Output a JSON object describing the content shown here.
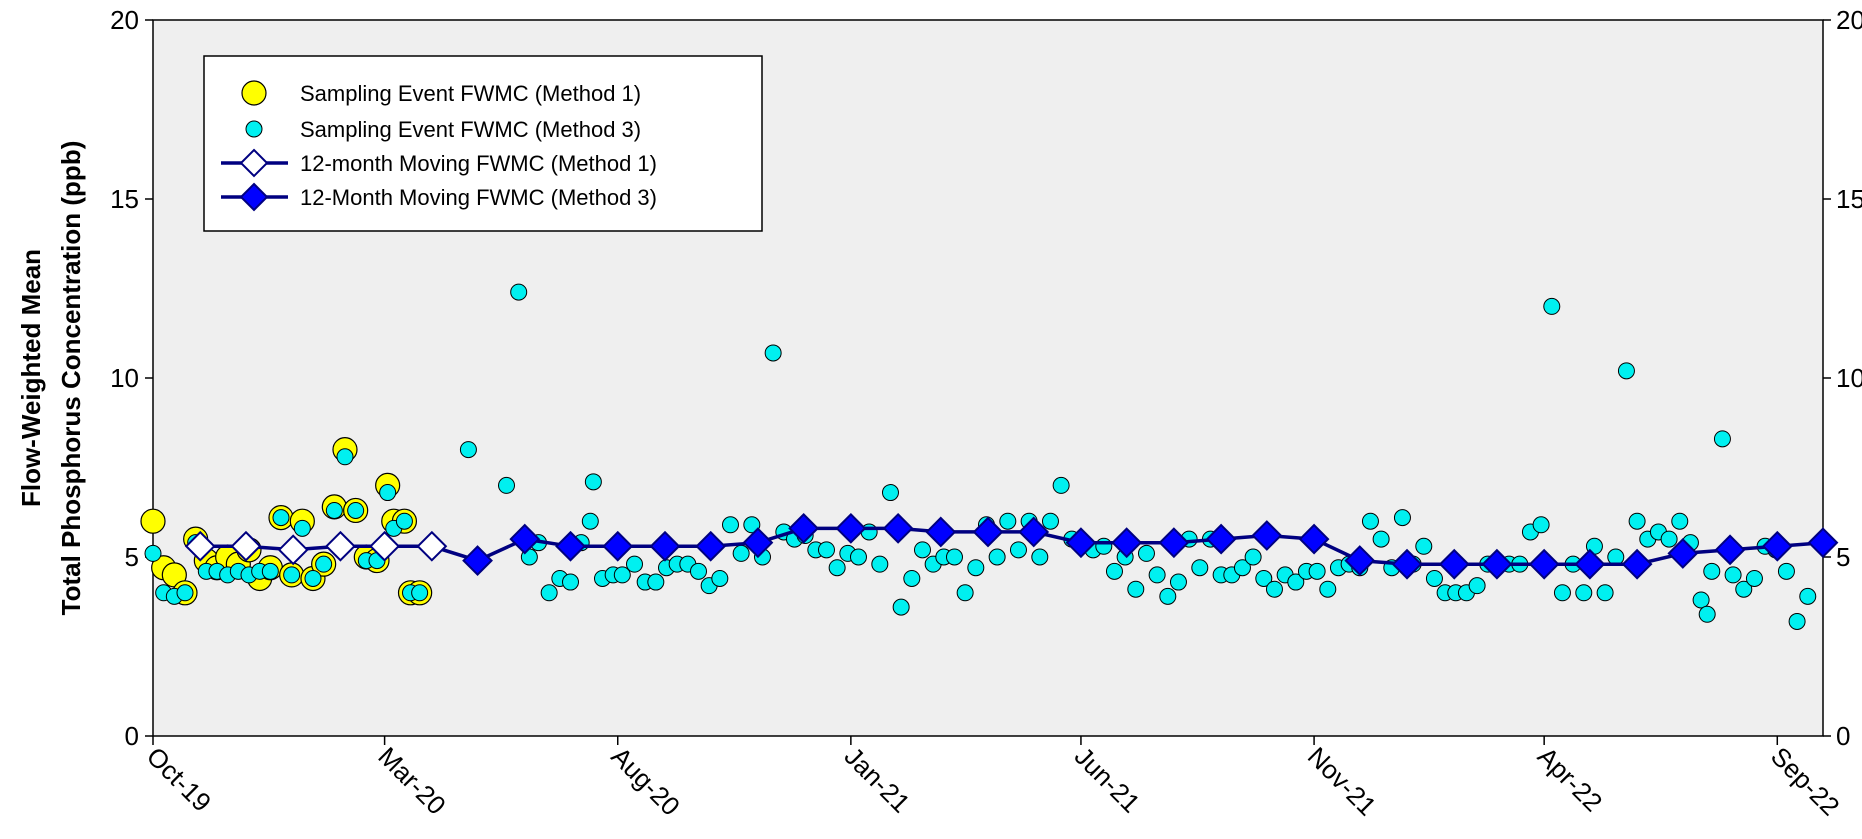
{
  "chart_data": {
    "type": "scatter",
    "ylabel": [
      "Flow-Weighted Mean",
      "Total Phosphorus Concentration (ppb)"
    ],
    "ylim": [
      0,
      20
    ],
    "yticks": [
      0,
      5,
      10,
      15,
      20
    ],
    "xlim": [
      "2019-10-01",
      "2022-10-01"
    ],
    "xticks": [
      {
        "date": "2019-10-01",
        "label": "Oct-19"
      },
      {
        "date": "2020-03-01",
        "label": "Mar-20"
      },
      {
        "date": "2020-08-01",
        "label": "Aug-20"
      },
      {
        "date": "2021-01-01",
        "label": "Jan-21"
      },
      {
        "date": "2021-06-01",
        "label": "Jun-21"
      },
      {
        "date": "2021-11-01",
        "label": "Nov-21"
      },
      {
        "date": "2022-04-01",
        "label": "Apr-22"
      },
      {
        "date": "2022-09-01",
        "label": "Sep-22"
      }
    ],
    "legend_position": "top-left",
    "grid": false,
    "colors": {
      "plot_bg": "#efefef",
      "method1_event_fill": "#ffff00",
      "method3_event_fill": "#00f0f0",
      "moving_line": "#000080",
      "method3_moving_fill": "#0000ff",
      "method1_moving_fill": "#ffffff"
    },
    "series": [
      {
        "name": "Sampling Event FWMC (Method 1)",
        "points": [
          [
            "2019-10-01",
            6.0
          ],
          [
            "2019-10-08",
            4.7
          ],
          [
            "2019-10-15",
            4.5
          ],
          [
            "2019-10-22",
            4.0
          ],
          [
            "2019-10-29",
            5.5
          ],
          [
            "2019-11-05",
            4.9
          ],
          [
            "2019-11-12",
            4.7
          ],
          [
            "2019-11-19",
            5.0
          ],
          [
            "2019-11-26",
            4.8
          ],
          [
            "2019-12-03",
            5.2
          ],
          [
            "2019-12-10",
            4.4
          ],
          [
            "2019-12-17",
            4.7
          ],
          [
            "2019-12-24",
            6.1
          ],
          [
            "2019-12-31",
            4.5
          ],
          [
            "2020-01-07",
            6.0
          ],
          [
            "2020-01-14",
            4.4
          ],
          [
            "2020-01-21",
            4.8
          ],
          [
            "2020-01-28",
            6.4
          ],
          [
            "2020-02-04",
            8.0
          ],
          [
            "2020-02-11",
            6.3
          ],
          [
            "2020-02-18",
            5.0
          ],
          [
            "2020-02-25",
            4.9
          ],
          [
            "2020-03-03",
            7.0
          ],
          [
            "2020-03-07",
            6.0
          ],
          [
            "2020-03-14",
            6.0
          ],
          [
            "2020-03-18",
            4.0
          ],
          [
            "2020-03-24",
            4.0
          ]
        ]
      },
      {
        "name": "Sampling Event FWMC (Method 3)",
        "points": [
          [
            "2019-10-01",
            5.1
          ],
          [
            "2019-10-08",
            4.0
          ],
          [
            "2019-10-15",
            3.9
          ],
          [
            "2019-10-22",
            4.0
          ],
          [
            "2019-10-29",
            5.4
          ],
          [
            "2019-11-05",
            4.6
          ],
          [
            "2019-11-12",
            4.6
          ],
          [
            "2019-11-19",
            4.5
          ],
          [
            "2019-11-26",
            4.6
          ],
          [
            "2019-12-03",
            4.5
          ],
          [
            "2019-12-10",
            4.6
          ],
          [
            "2019-12-17",
            4.6
          ],
          [
            "2019-12-24",
            6.1
          ],
          [
            "2019-12-31",
            4.5
          ],
          [
            "2020-01-07",
            5.8
          ],
          [
            "2020-01-14",
            4.4
          ],
          [
            "2020-01-21",
            4.8
          ],
          [
            "2020-01-28",
            6.3
          ],
          [
            "2020-02-04",
            7.8
          ],
          [
            "2020-02-11",
            6.3
          ],
          [
            "2020-02-18",
            4.9
          ],
          [
            "2020-02-25",
            4.9
          ],
          [
            "2020-03-03",
            6.8
          ],
          [
            "2020-03-07",
            5.8
          ],
          [
            "2020-03-14",
            6.0
          ],
          [
            "2020-03-18",
            4.0
          ],
          [
            "2020-03-24",
            4.0
          ],
          [
            "2020-04-25",
            8.0
          ],
          [
            "2020-05-20",
            7.0
          ],
          [
            "2020-05-28",
            12.4
          ],
          [
            "2020-06-04",
            5.0
          ],
          [
            "2020-06-10",
            5.4
          ],
          [
            "2020-06-17",
            4.0
          ],
          [
            "2020-06-24",
            4.4
          ],
          [
            "2020-07-01",
            4.3
          ],
          [
            "2020-07-08",
            5.4
          ],
          [
            "2020-07-14",
            6.0
          ],
          [
            "2020-07-16",
            7.1
          ],
          [
            "2020-07-22",
            4.4
          ],
          [
            "2020-07-29",
            4.5
          ],
          [
            "2020-08-04",
            4.5
          ],
          [
            "2020-08-12",
            4.8
          ],
          [
            "2020-08-19",
            4.3
          ],
          [
            "2020-08-26",
            4.3
          ],
          [
            "2020-09-02",
            4.7
          ],
          [
            "2020-09-09",
            4.8
          ],
          [
            "2020-09-16",
            4.8
          ],
          [
            "2020-09-23",
            4.6
          ],
          [
            "2020-09-30",
            4.2
          ],
          [
            "2020-10-07",
            4.4
          ],
          [
            "2020-10-14",
            5.9
          ],
          [
            "2020-10-21",
            5.1
          ],
          [
            "2020-10-28",
            5.9
          ],
          [
            "2020-11-04",
            5.0
          ],
          [
            "2020-11-11",
            10.7
          ],
          [
            "2020-11-18",
            5.7
          ],
          [
            "2020-11-25",
            5.5
          ],
          [
            "2020-12-02",
            5.6
          ],
          [
            "2020-12-09",
            5.2
          ],
          [
            "2020-12-16",
            5.2
          ],
          [
            "2020-12-23",
            4.7
          ],
          [
            "2020-12-30",
            5.1
          ],
          [
            "2021-01-06",
            5.0
          ],
          [
            "2021-01-13",
            5.7
          ],
          [
            "2021-01-20",
            4.8
          ],
          [
            "2021-01-27",
            6.8
          ],
          [
            "2021-02-03",
            3.6
          ],
          [
            "2021-02-10",
            4.4
          ],
          [
            "2021-02-17",
            5.2
          ],
          [
            "2021-02-24",
            4.8
          ],
          [
            "2021-03-03",
            5.0
          ],
          [
            "2021-03-10",
            5.0
          ],
          [
            "2021-03-17",
            4.0
          ],
          [
            "2021-03-24",
            4.7
          ],
          [
            "2021-03-31",
            5.9
          ],
          [
            "2021-04-07",
            5.0
          ],
          [
            "2021-04-14",
            6.0
          ],
          [
            "2021-04-21",
            5.2
          ],
          [
            "2021-04-28",
            6.0
          ],
          [
            "2021-05-05",
            5.0
          ],
          [
            "2021-05-12",
            6.0
          ],
          [
            "2021-05-19",
            7.0
          ],
          [
            "2021-05-26",
            5.5
          ],
          [
            "2021-06-02",
            5.4
          ],
          [
            "2021-06-09",
            5.2
          ],
          [
            "2021-06-16",
            5.3
          ],
          [
            "2021-06-23",
            4.6
          ],
          [
            "2021-06-30",
            5.0
          ],
          [
            "2021-07-07",
            4.1
          ],
          [
            "2021-07-14",
            5.1
          ],
          [
            "2021-07-21",
            4.5
          ],
          [
            "2021-07-28",
            3.9
          ],
          [
            "2021-08-04",
            4.3
          ],
          [
            "2021-08-11",
            5.5
          ],
          [
            "2021-08-18",
            4.7
          ],
          [
            "2021-08-25",
            5.5
          ],
          [
            "2021-09-01",
            4.5
          ],
          [
            "2021-09-08",
            4.5
          ],
          [
            "2021-09-15",
            4.7
          ],
          [
            "2021-09-22",
            5.0
          ],
          [
            "2021-09-29",
            4.4
          ],
          [
            "2021-10-06",
            4.1
          ],
          [
            "2021-10-13",
            4.5
          ],
          [
            "2021-10-20",
            4.3
          ],
          [
            "2021-10-27",
            4.6
          ],
          [
            "2021-11-03",
            4.6
          ],
          [
            "2021-11-10",
            4.1
          ],
          [
            "2021-11-17",
            4.7
          ],
          [
            "2021-11-24",
            4.8
          ],
          [
            "2021-12-01",
            4.7
          ],
          [
            "2021-12-08",
            6.0
          ],
          [
            "2021-12-15",
            5.5
          ],
          [
            "2021-12-22",
            4.7
          ],
          [
            "2021-12-29",
            6.1
          ],
          [
            "2022-01-05",
            4.8
          ],
          [
            "2022-01-12",
            5.3
          ],
          [
            "2022-01-19",
            4.4
          ],
          [
            "2022-01-26",
            4.0
          ],
          [
            "2022-02-02",
            4.0
          ],
          [
            "2022-02-09",
            4.0
          ],
          [
            "2022-02-16",
            4.2
          ],
          [
            "2022-02-23",
            4.8
          ],
          [
            "2022-03-02",
            4.8
          ],
          [
            "2022-03-09",
            4.8
          ],
          [
            "2022-03-16",
            4.8
          ],
          [
            "2022-03-23",
            5.7
          ],
          [
            "2022-03-30",
            5.9
          ],
          [
            "2022-04-06",
            12.0
          ],
          [
            "2022-04-13",
            4.0
          ],
          [
            "2022-04-20",
            4.8
          ],
          [
            "2022-04-27",
            4.0
          ],
          [
            "2022-05-04",
            5.3
          ],
          [
            "2022-05-11",
            4.0
          ],
          [
            "2022-05-18",
            5.0
          ],
          [
            "2022-05-25",
            10.2
          ],
          [
            "2022-06-01",
            6.0
          ],
          [
            "2022-06-08",
            5.5
          ],
          [
            "2022-06-15",
            5.7
          ],
          [
            "2022-06-22",
            5.5
          ],
          [
            "2022-06-29",
            6.0
          ],
          [
            "2022-07-06",
            5.4
          ],
          [
            "2022-07-13",
            3.8
          ],
          [
            "2022-07-17",
            3.4
          ],
          [
            "2022-07-20",
            4.6
          ],
          [
            "2022-07-27",
            8.3
          ],
          [
            "2022-08-03",
            4.5
          ],
          [
            "2022-08-10",
            4.1
          ],
          [
            "2022-08-17",
            4.4
          ],
          [
            "2022-08-24",
            5.3
          ],
          [
            "2022-08-31",
            5.2
          ],
          [
            "2022-09-07",
            4.6
          ],
          [
            "2022-09-14",
            3.2
          ],
          [
            "2022-09-21",
            3.9
          ]
        ]
      },
      {
        "name": "12-month Moving FWMC (Method 1)",
        "points": [
          [
            "2019-11-01",
            5.3
          ],
          [
            "2019-12-01",
            5.3
          ],
          [
            "2020-01-01",
            5.2
          ],
          [
            "2020-02-01",
            5.3
          ],
          [
            "2020-03-01",
            5.3
          ],
          [
            "2020-04-01",
            5.3
          ]
        ]
      },
      {
        "name": "12-Month Moving FWMC (Method 3)",
        "points": [
          [
            "2020-05-01",
            4.9
          ],
          [
            "2020-06-01",
            5.5
          ],
          [
            "2020-07-01",
            5.3
          ],
          [
            "2020-08-01",
            5.3
          ],
          [
            "2020-09-01",
            5.3
          ],
          [
            "2020-10-01",
            5.3
          ],
          [
            "2020-11-01",
            5.4
          ],
          [
            "2020-12-01",
            5.8
          ],
          [
            "2021-01-01",
            5.8
          ],
          [
            "2021-02-01",
            5.8
          ],
          [
            "2021-03-01",
            5.7
          ],
          [
            "2021-04-01",
            5.7
          ],
          [
            "2021-05-01",
            5.7
          ],
          [
            "2021-06-01",
            5.4
          ],
          [
            "2021-07-01",
            5.4
          ],
          [
            "2021-08-01",
            5.4
          ],
          [
            "2021-09-01",
            5.5
          ],
          [
            "2021-10-01",
            5.6
          ],
          [
            "2021-11-01",
            5.5
          ],
          [
            "2021-12-01",
            4.9
          ],
          [
            "2022-01-01",
            4.8
          ],
          [
            "2022-02-01",
            4.8
          ],
          [
            "2022-03-01",
            4.8
          ],
          [
            "2022-04-01",
            4.8
          ],
          [
            "2022-05-01",
            4.8
          ],
          [
            "2022-06-01",
            4.8
          ],
          [
            "2022-07-01",
            5.1
          ],
          [
            "2022-08-01",
            5.2
          ],
          [
            "2022-09-01",
            5.3
          ],
          [
            "2022-10-01",
            5.4
          ]
        ]
      }
    ]
  }
}
